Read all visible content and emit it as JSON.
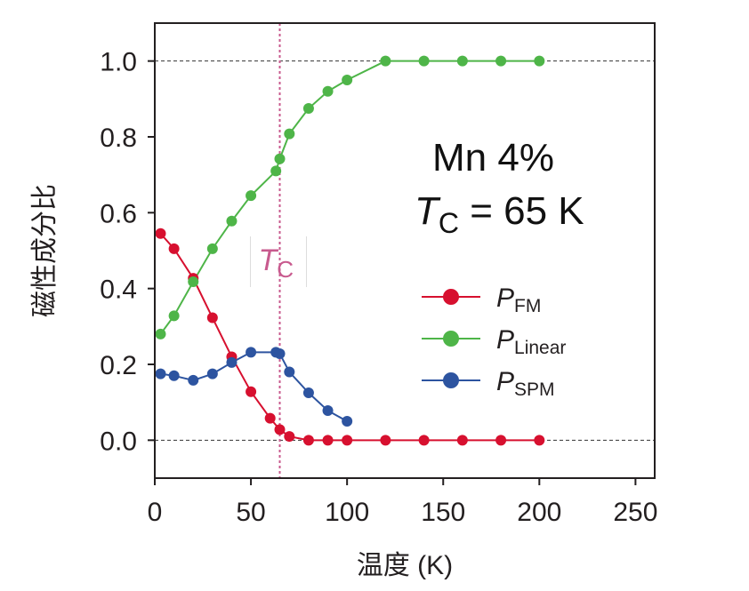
{
  "chart_data": {
    "type": "line",
    "xlabel": "温度 (K)",
    "ylabel": "磁性成分比",
    "xlim": [
      0,
      260
    ],
    "ylim": [
      -0.1,
      1.1
    ],
    "xticks": [
      "0",
      "50",
      "100",
      "150",
      "200",
      "250"
    ],
    "xtick_values": [
      0,
      50,
      100,
      150,
      200,
      250
    ],
    "yticks": [
      "0.0",
      "0.2",
      "0.4",
      "0.6",
      "0.8",
      "1.0"
    ],
    "ytick_values": [
      0.0,
      0.2,
      0.4,
      0.6,
      0.8,
      1.0
    ],
    "reference_lines": [
      0.0,
      1.0
    ],
    "tc_line_x": 65,
    "tc_label": {
      "main": "T",
      "sub": "C"
    },
    "annotation": {
      "line1": "Mn 4%",
      "line2_italic": "T",
      "line2_sub": "C",
      "line2_rest": " = 65 K"
    },
    "legend_position": "right",
    "x": [
      3,
      10,
      20,
      30,
      40,
      50,
      60,
      63,
      65,
      70,
      80,
      90,
      100,
      120,
      140,
      160,
      180,
      200
    ],
    "series": [
      {
        "name": "P",
        "subscript": "FM",
        "color": "#d7102f",
        "values": [
          0.545,
          0.505,
          0.427,
          0.323,
          0.22,
          0.128,
          0.058,
          null,
          0.028,
          0.01,
          0.0,
          0.0,
          0.0,
          0.0,
          0.0,
          0.0,
          0.0,
          0.0
        ]
      },
      {
        "name": "P",
        "subscript": "Linear",
        "color": "#4eb548",
        "values": [
          0.28,
          0.328,
          0.418,
          0.505,
          0.578,
          0.645,
          null,
          0.71,
          0.742,
          0.808,
          0.875,
          0.92,
          0.95,
          1.0,
          1.0,
          1.0,
          1.0,
          1.0
        ]
      },
      {
        "name": "P",
        "subscript": "SPM",
        "color": "#2d54a0",
        "values": [
          0.175,
          0.17,
          0.158,
          0.175,
          0.205,
          0.232,
          null,
          0.232,
          0.228,
          0.18,
          0.125,
          0.078,
          0.05,
          null,
          null,
          null,
          null,
          null
        ]
      }
    ]
  }
}
